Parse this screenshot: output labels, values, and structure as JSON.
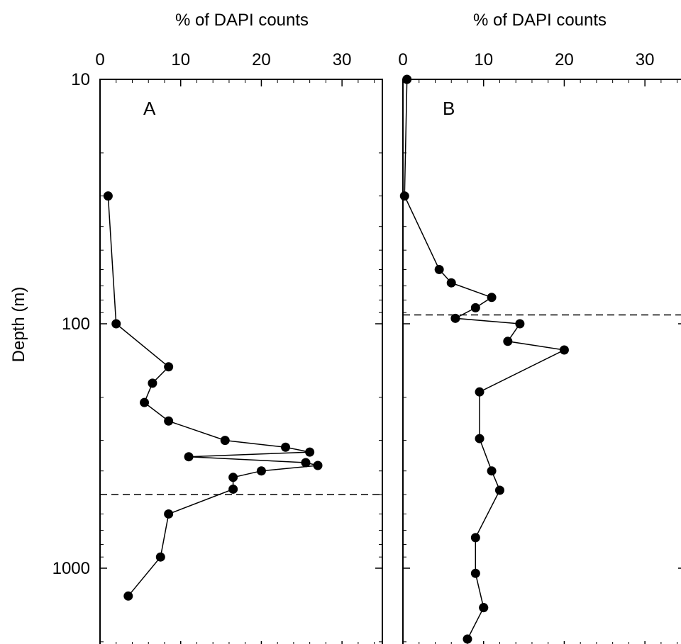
{
  "chart_data": [
    {
      "type": "line",
      "panel": "A",
      "xlabel": "% of DAPI counts",
      "ylabel": "Depth (m)",
      "xlim": [
        0,
        35
      ],
      "ylim": [
        10,
        2000
      ],
      "yscale": "log",
      "x_ticks": [
        0,
        10,
        20,
        30
      ],
      "y_ticks": [
        10,
        100,
        1000
      ],
      "marker": "filled-circle",
      "line_color": "#000000",
      "reference_line_depth": 500,
      "points": [
        {
          "x": 1,
          "y": 30
        },
        {
          "x": 2,
          "y": 100
        },
        {
          "x": 8.5,
          "y": 150
        },
        {
          "x": 6.5,
          "y": 175
        },
        {
          "x": 5.5,
          "y": 210
        },
        {
          "x": 8.5,
          "y": 250
        },
        {
          "x": 15.5,
          "y": 300
        },
        {
          "x": 23,
          "y": 320
        },
        {
          "x": 26,
          "y": 335
        },
        {
          "x": 11,
          "y": 350
        },
        {
          "x": 25.5,
          "y": 370
        },
        {
          "x": 27,
          "y": 380
        },
        {
          "x": 20,
          "y": 400
        },
        {
          "x": 16.5,
          "y": 425
        },
        {
          "x": 16.5,
          "y": 475
        },
        {
          "x": 8.5,
          "y": 600
        },
        {
          "x": 7.5,
          "y": 900
        },
        {
          "x": 3.5,
          "y": 1300
        }
      ]
    },
    {
      "type": "line",
      "panel": "B",
      "xlabel": "% of DAPI counts",
      "xlim": [
        0,
        35
      ],
      "ylim": [
        10,
        2000
      ],
      "yscale": "log",
      "x_ticks": [
        0,
        10,
        20,
        30
      ],
      "marker": "filled-circle",
      "line_color": "#000000",
      "reference_line_depth": 92,
      "points": [
        {
          "x": 0.5,
          "y": 10
        },
        {
          "x": 0.2,
          "y": 30
        },
        {
          "x": 4.5,
          "y": 60
        },
        {
          "x": 6,
          "y": 68
        },
        {
          "x": 11,
          "y": 78
        },
        {
          "x": 9,
          "y": 86
        },
        {
          "x": 6.5,
          "y": 95
        },
        {
          "x": 14.5,
          "y": 100
        },
        {
          "x": 13,
          "y": 118
        },
        {
          "x": 20,
          "y": 128
        },
        {
          "x": 9.5,
          "y": 190
        },
        {
          "x": 9.5,
          "y": 295
        },
        {
          "x": 11,
          "y": 400
        },
        {
          "x": 12,
          "y": 480
        },
        {
          "x": 9,
          "y": 750
        },
        {
          "x": 9,
          "y": 1050
        },
        {
          "x": 10,
          "y": 1450
        },
        {
          "x": 10,
          "y": 1450
        },
        {
          "x": 8,
          "y": 1950
        }
      ]
    }
  ]
}
